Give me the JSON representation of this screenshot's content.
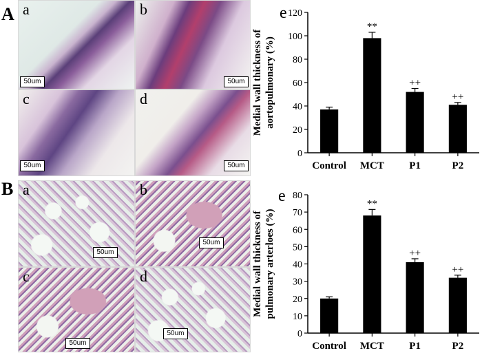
{
  "panels": {
    "A": {
      "letter": "A",
      "micrographs": [
        {
          "sub": "a",
          "scale": "50um"
        },
        {
          "sub": "b",
          "scale": "50um"
        },
        {
          "sub": "c",
          "scale": "50um"
        },
        {
          "sub": "d",
          "scale": "50um"
        }
      ]
    },
    "B": {
      "letter": "B",
      "micrographs": [
        {
          "sub": "a",
          "scale": "50um"
        },
        {
          "sub": "b",
          "scale": "50um"
        },
        {
          "sub": "c",
          "scale": "50um"
        },
        {
          "sub": "d",
          "scale": "50um"
        }
      ]
    }
  },
  "chart_data": [
    {
      "type": "bar",
      "panel_label": "e",
      "categories": [
        "Control",
        "MCT",
        "P1",
        "P2"
      ],
      "values": [
        37,
        98,
        52,
        41
      ],
      "errors": [
        2,
        5,
        3,
        2
      ],
      "annotations": [
        "",
        "**",
        "++",
        "++"
      ],
      "ylabel_line1": "Medial wall thickness of",
      "ylabel_line2": "aortopulmonary (%)",
      "ylim": [
        0,
        120
      ],
      "yticks": [
        0,
        20,
        40,
        60,
        80,
        100,
        120
      ],
      "bar_color": "#000000"
    },
    {
      "type": "bar",
      "panel_label": "e",
      "categories": [
        "Control",
        "MCT",
        "P1",
        "P2"
      ],
      "values": [
        20,
        68,
        41,
        32
      ],
      "errors": [
        1,
        3.5,
        2,
        1.5
      ],
      "annotations": [
        "",
        "**",
        "++",
        "++"
      ],
      "ylabel_line1": "Medial wall thickness of",
      "ylabel_line2": "pulmonary arterloes (%)",
      "ylim": [
        0,
        80
      ],
      "yticks": [
        0,
        10,
        20,
        30,
        40,
        50,
        60,
        70,
        80
      ],
      "bar_color": "#000000"
    }
  ]
}
